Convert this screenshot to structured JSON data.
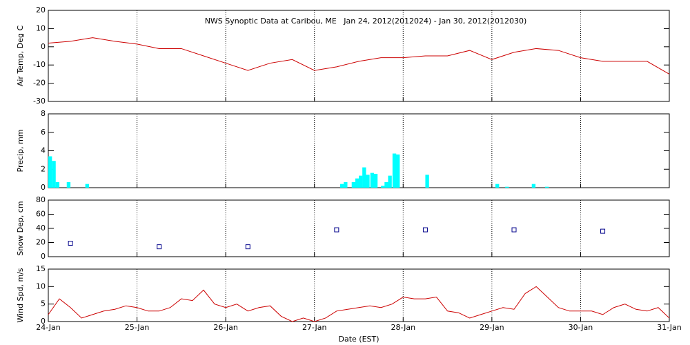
{
  "chart_data": [
    {
      "type": "line",
      "title": "NWS Synoptic Data at Caribou, ME   Jan 24, 2012(2012024) - Jan 30, 2012(2012030)",
      "ylabel": "Air Temp, Deg C",
      "xlim": [
        0,
        7
      ],
      "xticks": [
        0,
        1,
        2,
        3,
        4,
        5,
        6,
        7
      ],
      "ylim": [
        -30,
        20
      ],
      "yticks": [
        -30,
        -20,
        -10,
        0,
        10,
        20
      ],
      "x": [
        0,
        0.25,
        0.5,
        0.75,
        1,
        1.25,
        1.5,
        1.75,
        2,
        2.25,
        2.5,
        2.75,
        3,
        3.25,
        3.5,
        3.75,
        4,
        4.25,
        4.5,
        4.75,
        5,
        5.25,
        5.5,
        5.75,
        6,
        6.25,
        6.5,
        6.75,
        7
      ],
      "series": [
        {
          "color": "#cc0000",
          "values": [
            2,
            3,
            5,
            3,
            1.5,
            -1,
            -1,
            -5,
            -9,
            -13,
            -9,
            -7,
            -13,
            -11,
            -8,
            -6,
            -6,
            -5,
            -5,
            -2,
            -7,
            -3,
            -1,
            -2,
            -6,
            -8,
            -8,
            -8,
            -15
          ]
        }
      ]
    },
    {
      "type": "bar",
      "ylabel": "Precip, mm",
      "xlim": [
        0,
        7
      ],
      "xticks": [
        0,
        1,
        2,
        3,
        4,
        5,
        6,
        7
      ],
      "ylim": [
        0,
        8
      ],
      "yticks": [
        0,
        2,
        4,
        6,
        8
      ],
      "color": "#00ffff",
      "x": [
        0,
        0.042,
        0.083,
        0.208,
        0.417,
        3.29,
        3.33,
        3.42,
        3.46,
        3.5,
        3.54,
        3.58,
        3.63,
        3.67,
        3.75,
        3.79,
        3.83,
        3.88,
        3.92,
        4.25,
        5.04,
        5.15,
        5.45,
        5.6
      ],
      "values": [
        3.4,
        2.9,
        0.6,
        0.6,
        0.4,
        0.4,
        0.6,
        0.6,
        1.0,
        1.3,
        2.2,
        1.4,
        1.6,
        1.5,
        0.2,
        0.6,
        1.3,
        3.7,
        3.6,
        1.4,
        0.4,
        0.1,
        0.4,
        0.1
      ]
    },
    {
      "type": "scatter",
      "ylabel": "Snow Dep, cm",
      "xlim": [
        0,
        7
      ],
      "xticks": [
        0,
        1,
        2,
        3,
        4,
        5,
        6,
        7
      ],
      "ylim": [
        0,
        80
      ],
      "yticks": [
        0,
        20,
        40,
        60,
        80
      ],
      "color": "#00008b",
      "x": [
        0.25,
        1.25,
        2.25,
        3.25,
        4.25,
        5.25,
        6.25
      ],
      "values": [
        19,
        14,
        14,
        38,
        38,
        38,
        36
      ]
    },
    {
      "type": "line",
      "ylabel": "Wind Spd, m/s",
      "xlabel": "Date (EST)",
      "xlim": [
        0,
        7
      ],
      "xticks": [
        {
          "value": 0,
          "label": "24-Jan"
        },
        {
          "value": 1,
          "label": "25-Jan"
        },
        {
          "value": 2,
          "label": "26-Jan"
        },
        {
          "value": 3,
          "label": "27-Jan"
        },
        {
          "value": 4,
          "label": "28-Jan"
        },
        {
          "value": 5,
          "label": "29-Jan"
        },
        {
          "value": 6,
          "label": "30-Jan"
        },
        {
          "value": 7,
          "label": "31-Jan"
        }
      ],
      "ylim": [
        0,
        15
      ],
      "yticks": [
        0,
        5,
        10,
        15
      ],
      "x": [
        0,
        0.125,
        0.25,
        0.375,
        0.5,
        0.625,
        0.75,
        0.875,
        1,
        1.125,
        1.25,
        1.375,
        1.5,
        1.625,
        1.75,
        1.875,
        2,
        2.125,
        2.25,
        2.375,
        2.5,
        2.625,
        2.75,
        2.875,
        3,
        3.125,
        3.25,
        3.375,
        3.5,
        3.625,
        3.75,
        3.875,
        4,
        4.125,
        4.25,
        4.375,
        4.5,
        4.625,
        4.75,
        4.875,
        5,
        5.125,
        5.25,
        5.375,
        5.5,
        5.625,
        5.75,
        5.875,
        6,
        6.125,
        6.25,
        6.375,
        6.5,
        6.625,
        6.75,
        6.875,
        7
      ],
      "series": [
        {
          "color": "#cc0000",
          "values": [
            2,
            6.5,
            4,
            1,
            2,
            3,
            3.5,
            4.5,
            4,
            3,
            3,
            4,
            6.5,
            6,
            9,
            5,
            4,
            5,
            3,
            4,
            4.5,
            1.5,
            0,
            1,
            0,
            1,
            3,
            3.5,
            4,
            4.5,
            4,
            5,
            7,
            6.5,
            6.5,
            7,
            3,
            2.5,
            1,
            2,
            3,
            4,
            3.5,
            8,
            10,
            7,
            4,
            3,
            3,
            3,
            2,
            4,
            5,
            3.5,
            3,
            4,
            1
          ]
        }
      ]
    }
  ]
}
